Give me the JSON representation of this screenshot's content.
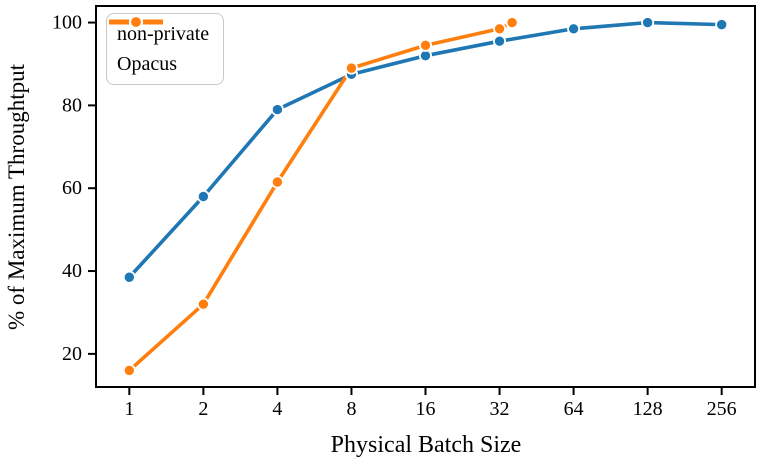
{
  "chart_data": {
    "type": "line",
    "title": "",
    "xlabel": "Physical Batch Size",
    "ylabel": "% of Maximum Throughtput",
    "x_scale": "log2",
    "grid": false,
    "legend_position": "upper-left",
    "x_ticks": [
      1,
      2,
      4,
      8,
      16,
      32,
      64,
      128,
      256
    ],
    "y_ticks": [
      20,
      40,
      60,
      80,
      100
    ],
    "xlim_log2": [
      -0.45,
      8.45
    ],
    "ylim": [
      12,
      104
    ],
    "marker": "circle",
    "line_style": "solid with white-edged circle markers",
    "series": [
      {
        "name": "non-private",
        "color": "#1f77b4",
        "x": [
          1,
          2,
          4,
          8,
          16,
          32,
          64,
          128,
          256
        ],
        "y": [
          38.5,
          58,
          79,
          87.5,
          92,
          95.5,
          98.5,
          100,
          99.5
        ]
      },
      {
        "name": "Opacus",
        "color": "#ff7f0e",
        "x": [
          1,
          2,
          4,
          8,
          16,
          32,
          36
        ],
        "y": [
          16,
          32,
          61.5,
          89,
          94.5,
          98.5,
          100
        ]
      }
    ]
  }
}
